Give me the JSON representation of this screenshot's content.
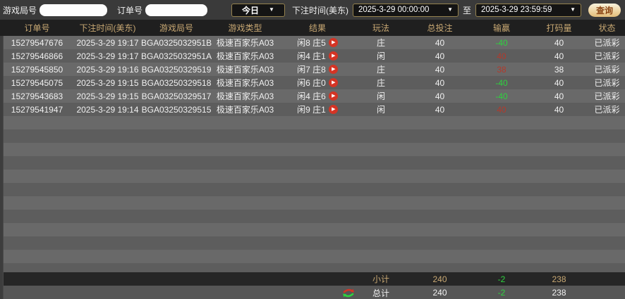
{
  "filters": {
    "game_round_label": "游戏局号",
    "game_round_value": "",
    "order_label": "订单号",
    "order_value": "",
    "period_selected": "今日",
    "bet_time_label": "下注时间(美东)",
    "start_time": "2025-3-29 00:00:00",
    "to_label": "至",
    "end_time": "2025-3-29 23:59:59",
    "query_button": "查询"
  },
  "icons": {
    "dropdown_arrow": "▼",
    "play_glyph": "▶",
    "play_icon_name": "play-icon",
    "swap_icon_name": "swap-arrows-icon"
  },
  "colors": {
    "header_text": "#c8a873",
    "win_positive_red": "#b23a2c",
    "loss_negative_green": "#2ed33e",
    "query_button_text": "#8b4513",
    "row_light": "#696969",
    "row_dark": "#5d5d5d"
  },
  "table": {
    "columns": [
      "订单号",
      "下注时间(美东)",
      "游戏局号",
      "游戏类型",
      "结果",
      "玩法",
      "总投注",
      "输赢",
      "打码量",
      "状态"
    ],
    "rows": [
      {
        "order_id": "15279547676",
        "bet_time": "2025-3-29 19:17",
        "round_id": "BGA0325032951B",
        "game_type": "极速百家乐A03",
        "result": "闲8 庄5",
        "play": "庄",
        "total_bet": "40",
        "win_loss": "-40",
        "win_loss_color": "green",
        "turnover": "40",
        "status": "已派彩"
      },
      {
        "order_id": "15279546866",
        "bet_time": "2025-3-29 19:17",
        "round_id": "BGA0325032951A",
        "game_type": "极速百家乐A03",
        "result": "闲4 庄1",
        "play": "闲",
        "total_bet": "40",
        "win_loss": "40",
        "win_loss_color": "red",
        "turnover": "40",
        "status": "已派彩"
      },
      {
        "order_id": "15279545850",
        "bet_time": "2025-3-29 19:16",
        "round_id": "BGA03250329519",
        "game_type": "极速百家乐A03",
        "result": "闲7 庄8",
        "play": "庄",
        "total_bet": "40",
        "win_loss": "38",
        "win_loss_color": "red",
        "turnover": "38",
        "status": "已派彩"
      },
      {
        "order_id": "15279545075",
        "bet_time": "2025-3-29 19:15",
        "round_id": "BGA03250329518",
        "game_type": "极速百家乐A03",
        "result": "闲6 庄0",
        "play": "庄",
        "total_bet": "40",
        "win_loss": "-40",
        "win_loss_color": "green",
        "turnover": "40",
        "status": "已派彩"
      },
      {
        "order_id": "15279543683",
        "bet_time": "2025-3-29 19:15",
        "round_id": "BGA03250329517",
        "game_type": "极速百家乐A03",
        "result": "闲4 庄6",
        "play": "闲",
        "total_bet": "40",
        "win_loss": "-40",
        "win_loss_color": "green",
        "turnover": "40",
        "status": "已派彩"
      },
      {
        "order_id": "15279541947",
        "bet_time": "2025-3-29 19:14",
        "round_id": "BGA03250329515",
        "game_type": "极速百家乐A03",
        "result": "闲9 庄1",
        "play": "闲",
        "total_bet": "40",
        "win_loss": "40",
        "win_loss_color": "red",
        "turnover": "40",
        "status": "已派彩"
      }
    ],
    "subtotal": {
      "label": "小计",
      "total_bet": "240",
      "win_loss": "-2",
      "turnover": "238"
    },
    "total": {
      "label": "总计",
      "total_bet": "240",
      "win_loss": "-2",
      "turnover": "238"
    }
  }
}
